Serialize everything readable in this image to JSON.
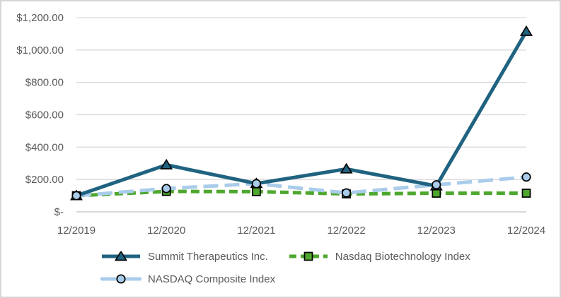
{
  "chart_data": {
    "type": "line",
    "title": "",
    "xlabel": "",
    "ylabel": "",
    "categories": [
      "12/2019",
      "12/2020",
      "12/2021",
      "12/2022",
      "12/2023",
      "12/2024"
    ],
    "series": [
      {
        "name": "Summit Therapeutics Inc.",
        "values": [
          100,
          290,
          175,
          265,
          160,
          1115
        ],
        "color": "#206380",
        "marker": "triangle",
        "dash": "solid"
      },
      {
        "name": "Nasdaq Biotechnology Index",
        "values": [
          100,
          126,
          125,
          111,
          115,
          115
        ],
        "color": "#4EA72E",
        "marker": "square",
        "dash": "dashed"
      },
      {
        "name": "NASDAQ Composite Index",
        "values": [
          100,
          144,
          174,
          117,
          167,
          215
        ],
        "color": "#A9CCEA",
        "marker": "circle",
        "dash": "long-dash"
      }
    ],
    "ylim": [
      0,
      1200
    ],
    "y_tick_labels": [
      "$-",
      "$200.00",
      "$400.00",
      "$600.00",
      "$800.00",
      "$1,000.00",
      "$1,200.00"
    ],
    "grid": true,
    "legend_position": "bottom",
    "legend_rows": [
      [
        0,
        1
      ],
      [
        2
      ]
    ]
  },
  "colors": {
    "text": "#595959",
    "gridline": "#D9D9D9",
    "axis_line": "#BFBFBF",
    "border": "#D6D6D6",
    "marker_outline": "#000000"
  }
}
